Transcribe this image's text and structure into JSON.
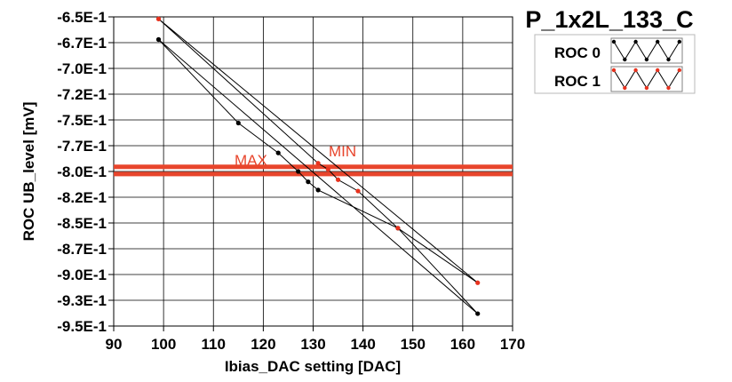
{
  "chart_data": {
    "type": "scatter",
    "title": "P_1x2L_133_C",
    "xlabel": "Ibias_DAC setting [DAC]",
    "ylabel": "ROC UB_level [mV]",
    "xlim": [
      90,
      170
    ],
    "ylim": [
      -0.95,
      -0.65
    ],
    "grid": true,
    "legend_position": "top-right",
    "x_ticks": [
      90,
      100,
      110,
      120,
      130,
      140,
      150,
      160,
      170
    ],
    "x_tick_labels": [
      "90",
      "100",
      "110",
      "120",
      "130",
      "140",
      "150",
      "160",
      "170"
    ],
    "y_ticks": [
      -0.65,
      -0.675,
      -0.7,
      -0.725,
      -0.75,
      -0.775,
      -0.8,
      -0.825,
      -0.85,
      -0.875,
      -0.9,
      -0.925,
      -0.95
    ],
    "y_tick_labels": [
      "-6.5E-1",
      "-6.7E-1",
      "-7.0E-1",
      "-7.2E-1",
      "-7.5E-1",
      "-7.7E-1",
      "-8.0E-1",
      "-8.2E-1",
      "-8.5E-1",
      "-8.7E-1",
      "-9.0E-1",
      "-9.3E-1",
      "-9.5E-1"
    ],
    "series": [
      {
        "name": "ROC 0",
        "color": "#000000",
        "x": [
          99,
          115,
          123,
          127,
          129,
          131,
          147,
          163,
          99
        ],
        "y": [
          -0.672,
          -0.753,
          -0.782,
          -0.8,
          -0.81,
          -0.818,
          -0.855,
          -0.938,
          -0.672
        ]
      },
      {
        "name": "ROC 1",
        "color": "#e8321e",
        "x": [
          99,
          131,
          133,
          135,
          139,
          147,
          163,
          99
        ],
        "y": [
          -0.652,
          -0.792,
          -0.798,
          -0.808,
          -0.819,
          -0.855,
          -0.908,
          -0.652
        ]
      }
    ],
    "reference_lines": [
      {
        "label": "MAX",
        "y": -0.7955,
        "color": "#e8452c"
      },
      {
        "label": "MIN",
        "y": -0.8025,
        "color": "#e8452c"
      }
    ]
  }
}
